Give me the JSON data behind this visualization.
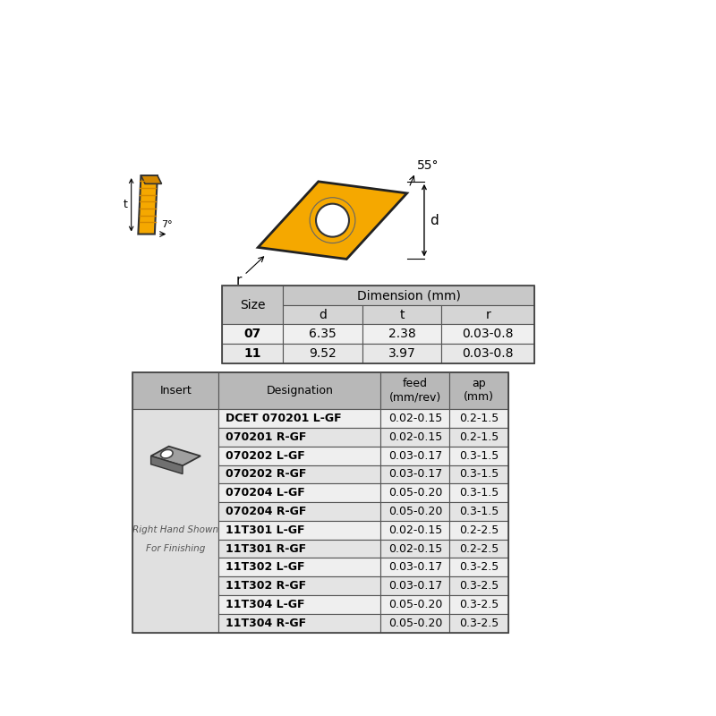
{
  "bg_color": "#ffffff",
  "dim_table": {
    "header_bg": "#c8c8c8",
    "subheader_bg": "#d5d5d5",
    "row_bg_even": "#f0f0f0",
    "row_bg_odd": "#e8e8e8",
    "sizes": [
      "07",
      "11"
    ],
    "d_vals": [
      "6.35",
      "9.52"
    ],
    "t_vals": [
      "2.38",
      "3.97"
    ],
    "r_vals": [
      "0.03-0.8",
      "0.03-0.8"
    ]
  },
  "insert_table": {
    "header_bg": "#b8b8b8",
    "row_bg": "#e8e8e8",
    "insert_col_bg": "#e0e0e0",
    "designations": [
      [
        "DCET 070201 L-GF",
        "0.02-0.15",
        "0.2-1.5"
      ],
      [
        "070201 R-GF",
        "0.02-0.15",
        "0.2-1.5"
      ],
      [
        "070202 L-GF",
        "0.03-0.17",
        "0.3-1.5"
      ],
      [
        "070202 R-GF",
        "0.03-0.17",
        "0.3-1.5"
      ],
      [
        "070204 L-GF",
        "0.05-0.20",
        "0.3-1.5"
      ],
      [
        "070204 R-GF",
        "0.05-0.20",
        "0.3-1.5"
      ],
      [
        "11T301 L-GF",
        "0.02-0.15",
        "0.2-2.5"
      ],
      [
        "11T301 R-GF",
        "0.02-0.15",
        "0.2-2.5"
      ],
      [
        "11T302 L-GF",
        "0.03-0.17",
        "0.3-2.5"
      ],
      [
        "11T302 R-GF",
        "0.03-0.17",
        "0.3-2.5"
      ],
      [
        "11T304 L-GF",
        "0.05-0.20",
        "0.3-2.5"
      ],
      [
        "11T304 R-GF",
        "0.05-0.20",
        "0.3-2.5"
      ]
    ]
  },
  "yellow": "#f5a800",
  "yellow_dark": "#d48800",
  "gray_insert": "#a0a0a0",
  "gray_shadow": "#707070",
  "angle_label": "55°",
  "deg7_label": "7°",
  "d_label": "d",
  "t_label": "t",
  "r_label": "r",
  "right_hand_text": "Right Hand Shown",
  "for_finishing_text": "For Finishing"
}
